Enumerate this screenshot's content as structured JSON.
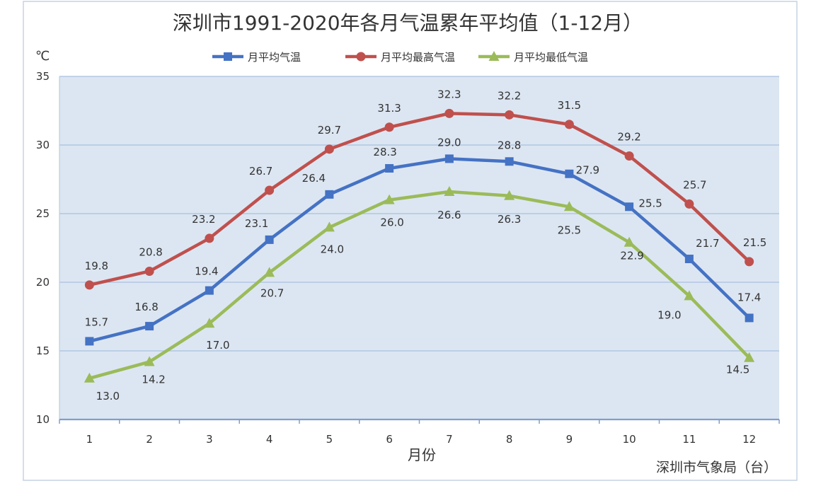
{
  "chart_data": {
    "type": "line",
    "title": "深圳市1991-2020年各月气温累年平均值（1-12月）",
    "y_unit": "℃",
    "xlabel": "月份",
    "source": "深圳市气象局（台）",
    "categories": [
      "1",
      "2",
      "3",
      "4",
      "5",
      "6",
      "7",
      "8",
      "9",
      "10",
      "11",
      "12"
    ],
    "yticks": [
      "10",
      "15",
      "20",
      "25",
      "30",
      "35"
    ],
    "ylim": [
      10,
      35
    ],
    "grid": true,
    "legend_position": "top-center",
    "series": [
      {
        "name": "月平均气温",
        "color": "#4472c4",
        "marker": "square",
        "values": [
          15.7,
          16.8,
          19.4,
          23.1,
          26.4,
          28.3,
          29.0,
          28.8,
          27.9,
          25.5,
          21.7,
          17.4
        ],
        "labels": [
          "15.7",
          "16.8",
          "19.4",
          "23.1",
          "26.4",
          "28.3",
          "29.0",
          "28.8",
          "27.9",
          "25.5",
          "21.7",
          "17.4"
        ]
      },
      {
        "name": "月平均最高气温",
        "color": "#c0504d",
        "marker": "circle",
        "values": [
          19.8,
          20.8,
          23.2,
          26.7,
          29.7,
          31.3,
          32.3,
          32.2,
          31.5,
          29.2,
          25.7,
          21.5
        ],
        "labels": [
          "19.8",
          "20.8",
          "23.2",
          "26.7",
          "29.7",
          "31.3",
          "32.3",
          "32.2",
          "31.5",
          "29.2",
          "25.7",
          "21.5"
        ]
      },
      {
        "name": "月平均最低气温",
        "color": "#9bbb59",
        "marker": "triangle",
        "values": [
          13.0,
          14.2,
          17.0,
          20.7,
          24.0,
          26.0,
          26.6,
          26.3,
          25.5,
          22.9,
          19.0,
          14.5
        ],
        "labels": [
          "13.0",
          "14.2",
          "17.0",
          "20.7",
          "24.0",
          "26.0",
          "26.6",
          "26.3",
          "25.5",
          "22.9",
          "19.0",
          "14.5"
        ]
      }
    ]
  }
}
